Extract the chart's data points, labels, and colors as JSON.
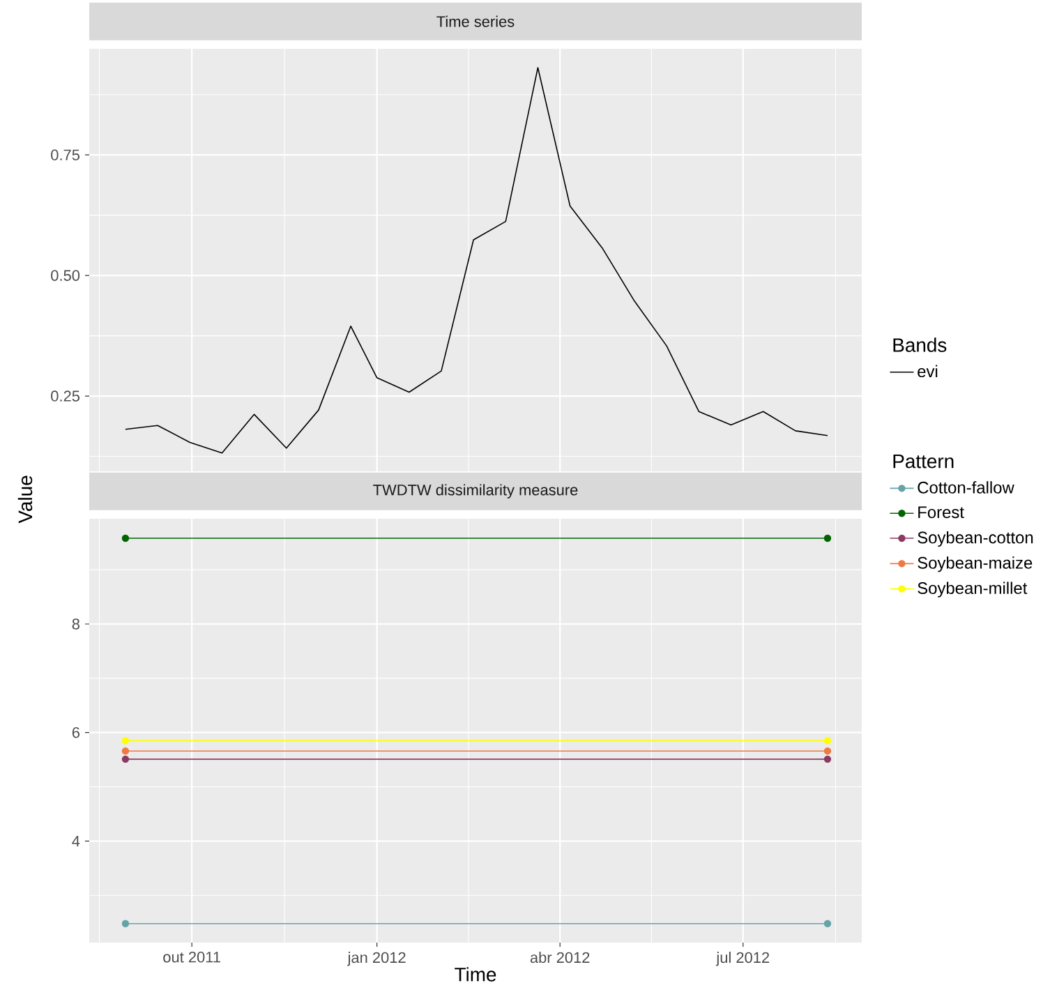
{
  "chart_data": [
    {
      "type": "line",
      "title": "Time series",
      "ylabel": "Value",
      "legend_title": "Bands",
      "x": [
        "2011-08-29",
        "2011-09-14",
        "2011-09-30",
        "2011-10-16",
        "2011-11-01",
        "2011-11-17",
        "2011-12-03",
        "2011-12-19",
        "2012-01-01",
        "2012-01-17",
        "2012-02-02",
        "2012-02-18",
        "2012-03-05",
        "2012-03-21",
        "2012-04-06",
        "2012-04-22",
        "2012-05-08",
        "2012-05-24",
        "2012-06-09",
        "2012-06-25",
        "2012-07-11",
        "2012-07-27",
        "2012-08-12"
      ],
      "series": [
        {
          "name": "evi",
          "color": "#000000",
          "values": [
            0.181,
            0.189,
            0.154,
            0.132,
            0.212,
            0.142,
            0.221,
            0.395,
            0.288,
            0.258,
            0.302,
            0.574,
            0.612,
            0.931,
            0.644,
            0.557,
            0.447,
            0.354,
            0.218,
            0.19,
            0.218,
            0.178,
            0.168
          ]
        }
      ],
      "xlim": [
        "2011-08-11",
        "2012-08-29"
      ],
      "ylim": [
        0.094,
        0.97
      ],
      "xticks": [
        {
          "value": "2011-10-01",
          "label": null
        },
        {
          "value": "2012-01-01",
          "label": null
        },
        {
          "value": "2012-04-01",
          "label": null
        },
        {
          "value": "2012-07-01",
          "label": null
        }
      ],
      "yticks": [
        {
          "value": 0.25,
          "label": "0.25"
        },
        {
          "value": 0.5,
          "label": "0.50"
        },
        {
          "value": 0.75,
          "label": "0.75"
        }
      ],
      "grid": true,
      "legend": "right",
      "tick_labels": "y",
      "line_style": "solid"
    },
    {
      "type": "line",
      "title": "TWDTW dissimilarity measure",
      "xlabel": "Time",
      "legend_title": "Pattern",
      "x": [
        "2011-08-29",
        "2012-08-12"
      ],
      "series": [
        {
          "name": "Cotton-fallow",
          "color": "#66a3a6",
          "values": [
            2.48,
            2.48
          ]
        },
        {
          "name": "Forest",
          "color": "#006400",
          "values": [
            9.58,
            9.58
          ]
        },
        {
          "name": "Soybean-cotton",
          "color": "#8b3a62",
          "values": [
            5.51,
            5.51
          ]
        },
        {
          "name": "Soybean-maize",
          "color": "#ee7942",
          "values": [
            5.66,
            5.66
          ]
        },
        {
          "name": "Soybean-millet",
          "color": "#ffff00",
          "values": [
            5.85,
            5.85
          ]
        }
      ],
      "xlim": [
        "2011-08-11",
        "2012-08-29"
      ],
      "ylim": [
        2.13,
        9.94
      ],
      "xticks": [
        {
          "value": "2011-10-01",
          "label": "out 2011"
        },
        {
          "value": "2012-01-01",
          "label": "jan 2012"
        },
        {
          "value": "2012-04-01",
          "label": "abr 2012"
        },
        {
          "value": "2012-07-01",
          "label": "jul 2012"
        }
      ],
      "yticks": [
        4,
        6,
        8
      ],
      "grid": true,
      "legend": "right",
      "marker": "circle",
      "line_style": "solid"
    }
  ]
}
